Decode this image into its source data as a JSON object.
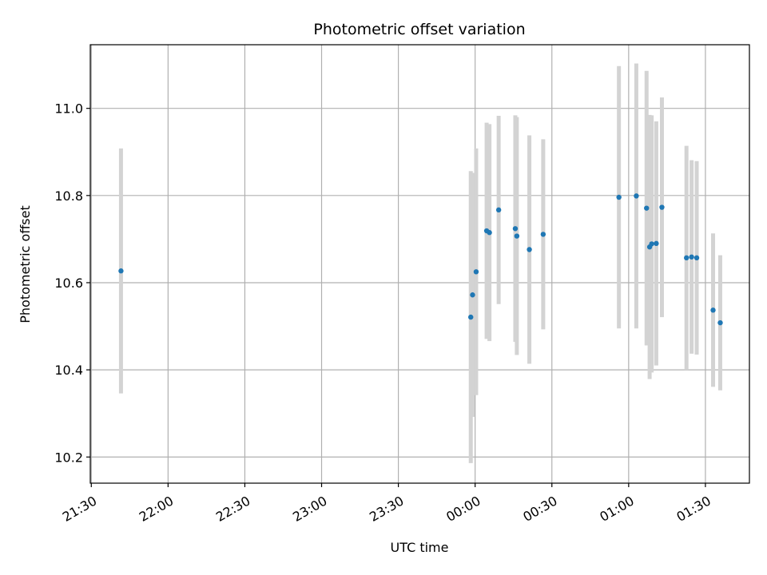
{
  "chart_data": {
    "type": "scatter",
    "title": "Photometric offset variation",
    "xlabel": "UTC time",
    "ylabel": "Photometric offset",
    "x_ticks": [
      "21:30",
      "22:00",
      "22:30",
      "23:00",
      "23:30",
      "00:00",
      "00:30",
      "01:00",
      "01:30"
    ],
    "x_tick_minutes": [
      0,
      30,
      60,
      90,
      120,
      150,
      180,
      210,
      240
    ],
    "x_range_minutes": [
      -0.4,
      257.2
    ],
    "y_ticks": [
      "10.2",
      "10.4",
      "10.6",
      "10.8",
      "11.0"
    ],
    "y_tick_values": [
      10.2,
      10.4,
      10.6,
      10.8,
      11.0
    ],
    "ylim": [
      10.14,
      11.146
    ],
    "grid": true,
    "point_color": "#1f77b4",
    "errorbar_color": "#d3d3d3",
    "points": [
      {
        "t": 11.6,
        "y": 10.627,
        "err": 0.281
      },
      {
        "t": 148.3,
        "y": 10.521,
        "err": 0.335
      },
      {
        "t": 149.0,
        "y": 10.572,
        "err": 0.28
      },
      {
        "t": 150.4,
        "y": 10.625,
        "err": 0.283
      },
      {
        "t": 154.5,
        "y": 10.719,
        "err": 0.248
      },
      {
        "t": 155.6,
        "y": 10.715,
        "err": 0.249
      },
      {
        "t": 159.2,
        "y": 10.767,
        "err": 0.216
      },
      {
        "t": 165.7,
        "y": 10.724,
        "err": 0.26
      },
      {
        "t": 166.3,
        "y": 10.707,
        "err": 0.273
      },
      {
        "t": 171.2,
        "y": 10.676,
        "err": 0.262
      },
      {
        "t": 176.6,
        "y": 10.711,
        "err": 0.218
      },
      {
        "t": 206.2,
        "y": 10.796,
        "err": 0.301
      },
      {
        "t": 213.0,
        "y": 10.799,
        "err": 0.304
      },
      {
        "t": 217.0,
        "y": 10.771,
        "err": 0.315
      },
      {
        "t": 218.2,
        "y": 10.682,
        "err": 0.303
      },
      {
        "t": 219.0,
        "y": 10.689,
        "err": 0.295
      },
      {
        "t": 220.8,
        "y": 10.69,
        "err": 0.28
      },
      {
        "t": 223.0,
        "y": 10.773,
        "err": 0.252
      },
      {
        "t": 232.6,
        "y": 10.657,
        "err": 0.257
      },
      {
        "t": 234.6,
        "y": 10.659,
        "err": 0.222
      },
      {
        "t": 236.6,
        "y": 10.657,
        "err": 0.222
      },
      {
        "t": 243.0,
        "y": 10.537,
        "err": 0.176
      },
      {
        "t": 245.8,
        "y": 10.508,
        "err": 0.155
      }
    ]
  }
}
